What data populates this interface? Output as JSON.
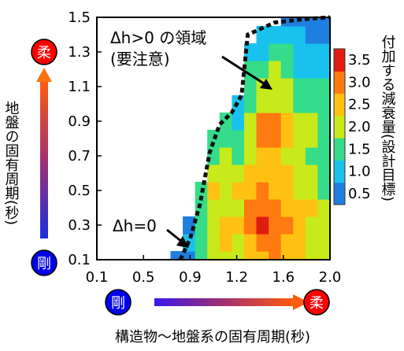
{
  "chart_data": {
    "type": "heatmap",
    "title": "",
    "xlabel": "構造物～地盤系の固有周期(秒)",
    "ylabel": "地盤の固有周期(秒)",
    "x_ticks": [
      "0.1",
      "0.5",
      "0.9",
      "1.2",
      "1.6",
      "2.0"
    ],
    "y_ticks": [
      "0.1",
      "0.3",
      "0.5",
      "0.7",
      "0.9",
      "1.1",
      "1.3",
      "1.5"
    ],
    "xlim": [
      0.1,
      2.0
    ],
    "ylim": [
      0.1,
      1.5
    ],
    "colorbar": {
      "label": "付加する減衰量(設計目標)",
      "ticks": [
        "0.5",
        "1.0",
        "1.5",
        "2.0",
        "2.5",
        "3.0",
        "3.5"
      ],
      "range": [
        0.25,
        3.75
      ],
      "colors": [
        "#1f7fe0",
        "#19c2ee",
        "#35dc8a",
        "#c8ea1a",
        "#ffc112",
        "#ff7a10",
        "#e01b12"
      ]
    },
    "x": [
      0.75,
      0.85,
      0.95,
      1.05,
      1.15,
      1.25,
      1.35,
      1.45,
      1.55,
      1.65,
      1.75,
      1.85,
      1.95
    ],
    "y": [
      0.1,
      0.2,
      0.3,
      0.4,
      0.5,
      0.6,
      0.7,
      0.8,
      0.9,
      1.0,
      1.1,
      1.2,
      1.3,
      1.4,
      1.5
    ],
    "z": [
      [
        0.5,
        0.6,
        1.5,
        2.2,
        1.9,
        2.0,
        2.4,
        2.7,
        2.8,
        2.3,
        2.4,
        2.0,
        1.9
      ],
      [
        null,
        0.8,
        1.3,
        2.0,
        2.3,
        2.1,
        2.6,
        3.1,
        2.8,
        2.6,
        2.5,
        2.1,
        2.0
      ],
      [
        null,
        0.7,
        1.6,
        2.0,
        2.4,
        2.3,
        2.9,
        3.3,
        3.1,
        2.8,
        2.4,
        2.2,
        2.0
      ],
      [
        null,
        null,
        1.7,
        2.0,
        2.2,
        2.1,
        2.8,
        3.1,
        3.0,
        2.6,
        2.4,
        2.3,
        1.8
      ],
      [
        null,
        null,
        1.6,
        2.3,
        2.2,
        2.3,
        2.6,
        2.8,
        2.7,
        2.5,
        2.2,
        1.9,
        1.7
      ],
      [
        null,
        null,
        null,
        2.0,
        2.2,
        2.0,
        2.5,
        2.6,
        2.5,
        2.4,
        2.0,
        1.8,
        1.6
      ],
      [
        null,
        null,
        null,
        1.6,
        1.8,
        1.7,
        2.2,
        2.3,
        2.4,
        2.2,
        1.9,
        1.6,
        1.4
      ],
      [
        null,
        null,
        null,
        1.5,
        1.6,
        1.3,
        2.1,
        2.8,
        3.2,
        2.6,
        2.1,
        1.8,
        1.5
      ],
      [
        null,
        null,
        null,
        null,
        1.3,
        1.1,
        2.0,
        3.0,
        3.2,
        2.7,
        2.1,
        1.8,
        1.6
      ],
      [
        null,
        null,
        null,
        null,
        null,
        1.2,
        1.7,
        2.2,
        2.1,
        2.0,
        1.7,
        1.6,
        1.5
      ],
      [
        null,
        null,
        null,
        null,
        null,
        null,
        1.5,
        2.0,
        2.2,
        1.8,
        1.6,
        1.5,
        1.3
      ],
      [
        null,
        null,
        null,
        null,
        null,
        null,
        1.3,
        1.6,
        1.8,
        1.5,
        1.2,
        1.1,
        1.0
      ],
      [
        null,
        null,
        null,
        null,
        null,
        null,
        1.1,
        1.2,
        1.4,
        1.3,
        1.1,
        0.9,
        0.8
      ],
      [
        null,
        null,
        null,
        null,
        null,
        null,
        null,
        0.9,
        1.1,
        1.0,
        0.8,
        0.7,
        0.6
      ],
      [
        null,
        null,
        null,
        null,
        null,
        null,
        null,
        null,
        null,
        0.7,
        0.6,
        0.6,
        0.5
      ]
    ],
    "boundary": [
      [
        0.78,
        0.1
      ],
      [
        0.86,
        0.22
      ],
      [
        0.94,
        0.42
      ],
      [
        1.02,
        0.72
      ],
      [
        1.1,
        0.88
      ],
      [
        1.2,
        0.95
      ],
      [
        1.28,
        1.05
      ],
      [
        1.33,
        1.4
      ],
      [
        1.55,
        1.47
      ],
      [
        1.8,
        1.49
      ],
      [
        2.0,
        1.5
      ]
    ],
    "annotations": [
      {
        "text": "Δh>0",
        "x": 1.25,
        "y": 1.1
      },
      {
        "text": "Δh=0",
        "x": 0.9,
        "y": 0.18
      }
    ]
  },
  "labels": {
    "region_line1": "Δh>0 の領域",
    "region_line2": "(要注意)",
    "dh_zero": "Δh=0",
    "soft": "柔",
    "rigid": "剛"
  }
}
